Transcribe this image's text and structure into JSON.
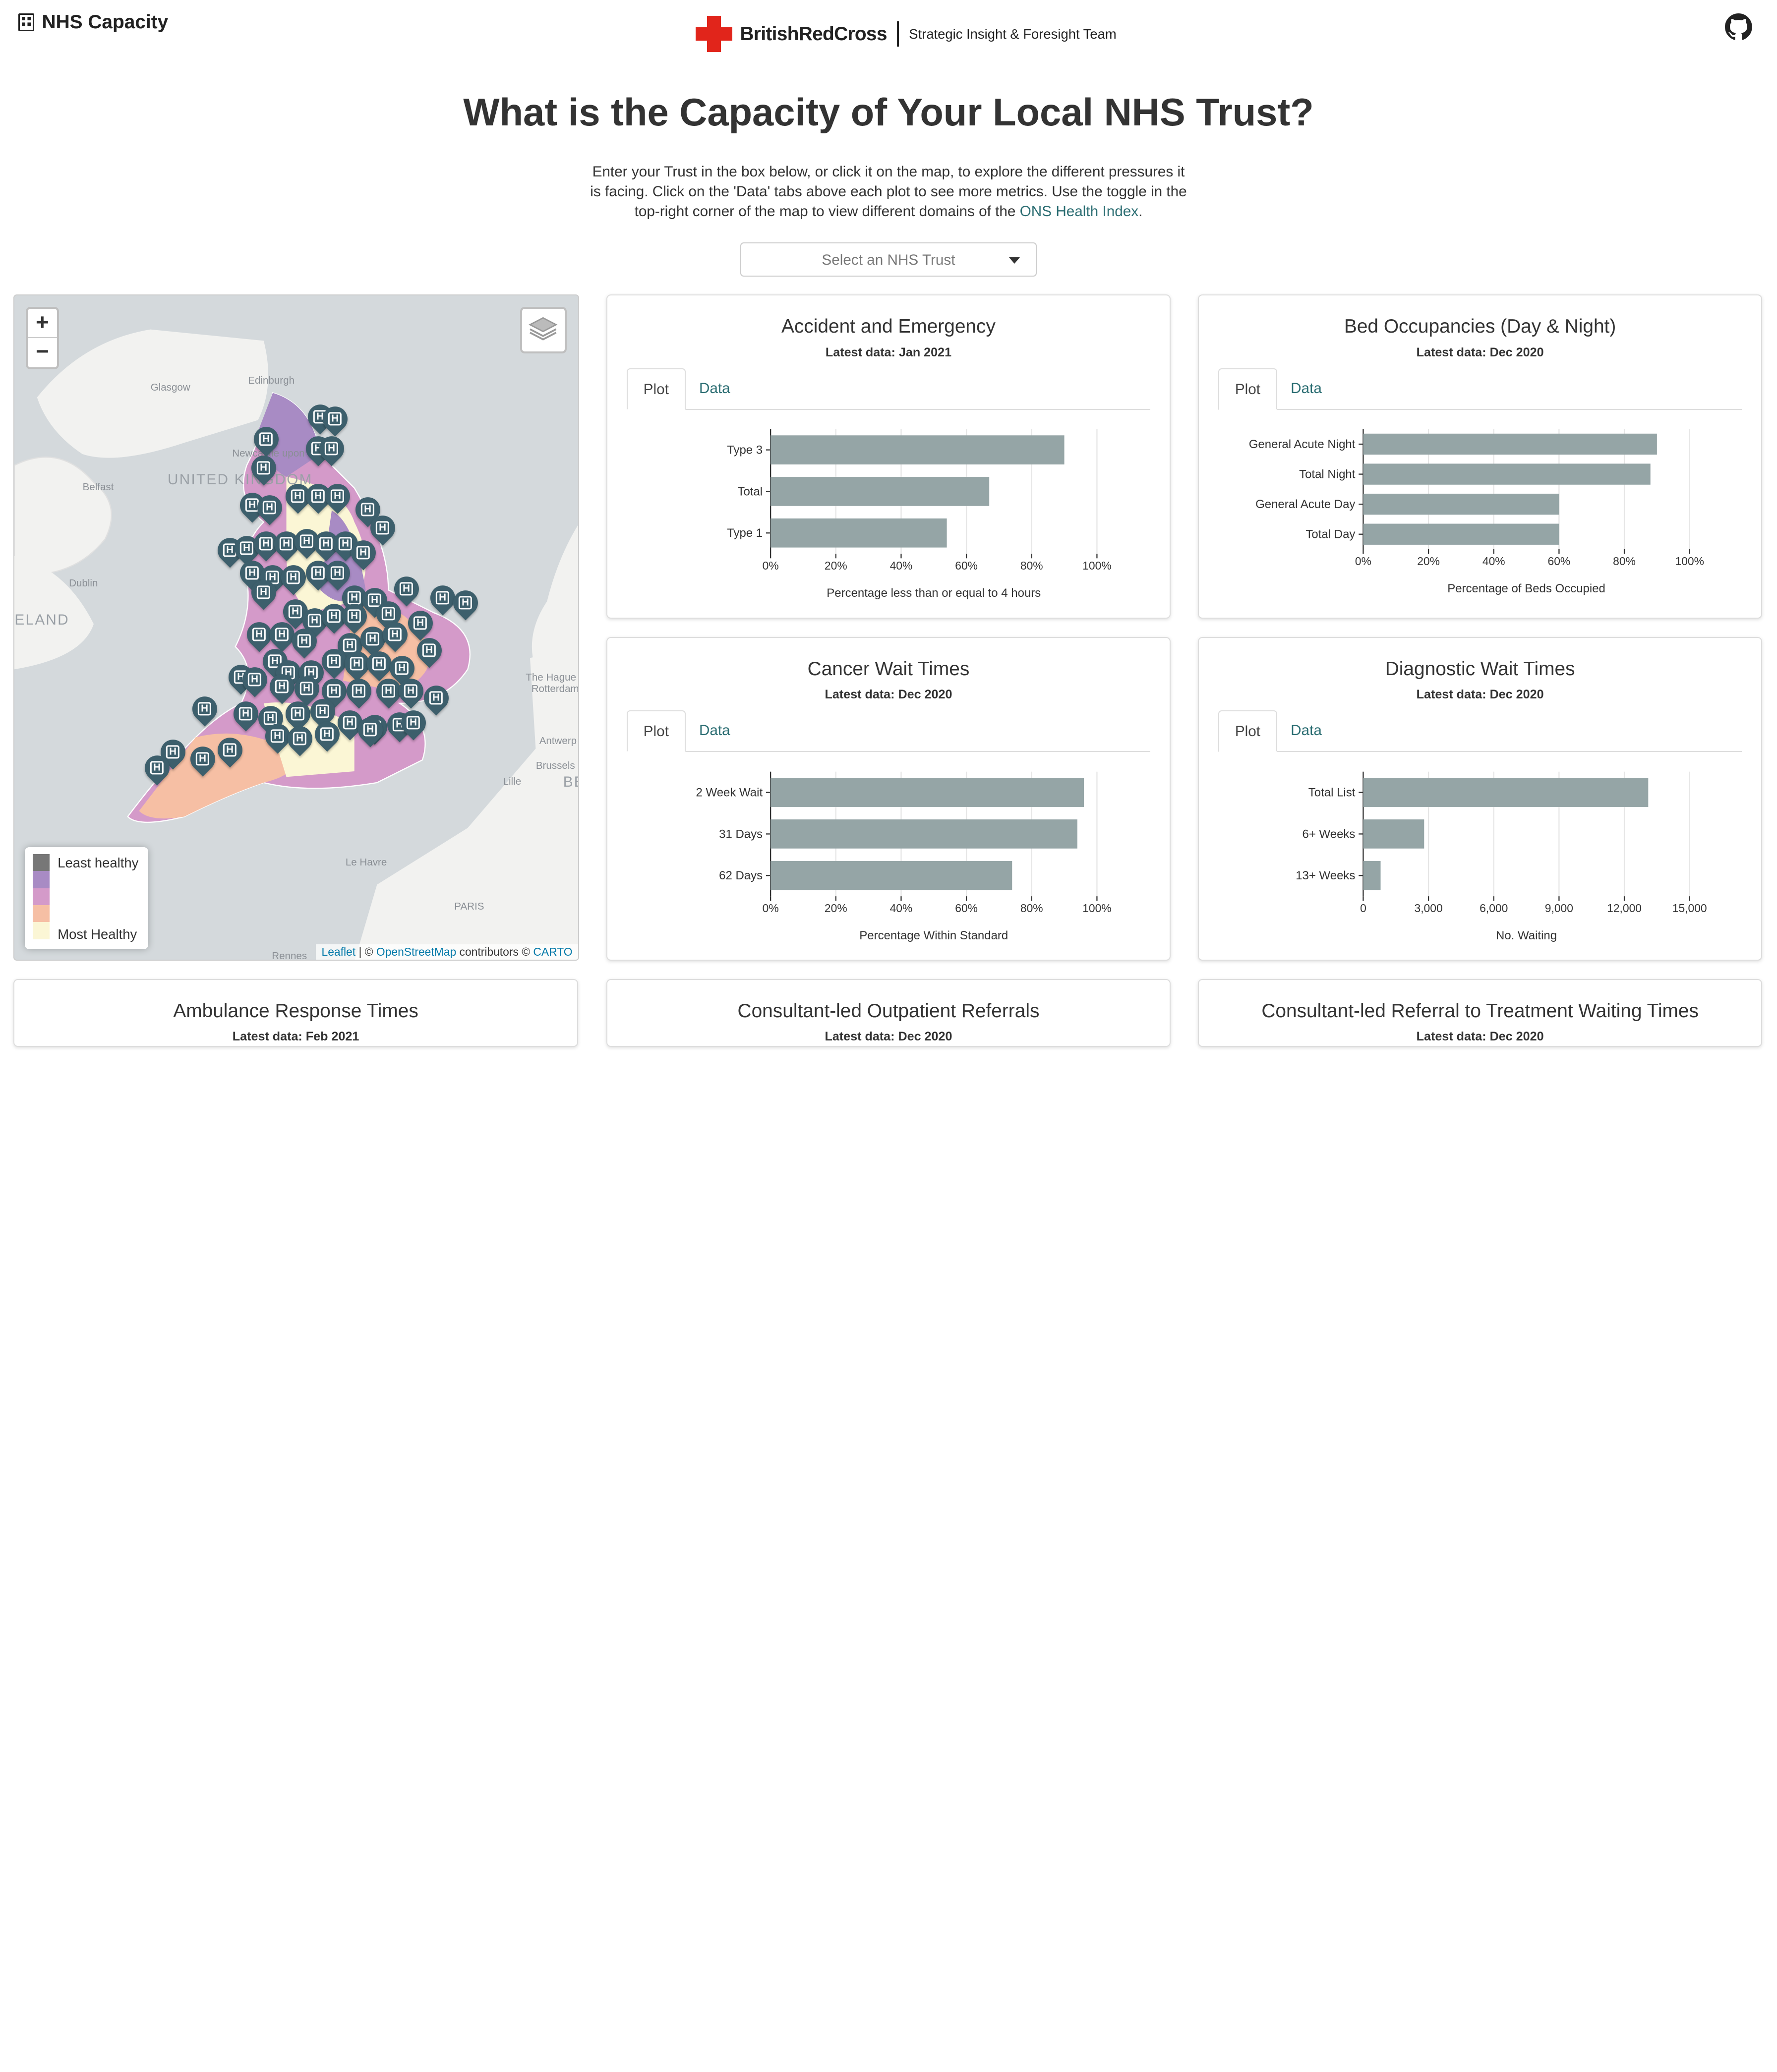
{
  "app": {
    "title": "NHS Capacity"
  },
  "header": {
    "org": "BritishRedCross",
    "team": "Strategic Insight & Foresight Team"
  },
  "page": {
    "heading": "What is the Capacity of Your Local NHS Trust?",
    "intro_text": "Enter your Trust in the box below, or click it on the map, to explore the different pressures it is facing. Click on the 'Data' tabs above each plot to see more metrics. Use the toggle in the top-right corner of the map to view different domains of the ",
    "intro_link": "ONS Health Index",
    "intro_end": "."
  },
  "select": {
    "placeholder": "Select an NHS Trust"
  },
  "map": {
    "zoom_in": "+",
    "zoom_out": "−",
    "labels": {
      "glasgow": "Glasgow",
      "edinburgh": "Edinburgh",
      "belfast": "Belfast",
      "uk": "UNITED KINGDOM",
      "dublin": "Dublin",
      "eland": "ELAND",
      "newcastle": "Newcastle upon Tyne",
      "hague": "The Hague",
      "rotterdam": "Rotterdam",
      "antwerp": "Antwerp",
      "brussels": "Brussels",
      "be": "BE",
      "lille": "Lille",
      "lehavre": "Le Havre",
      "paris": "PARIS",
      "rennes": "Rennes"
    },
    "legend": {
      "top": "Least healthy",
      "bottom": "Most Healthy",
      "colors": [
        "#777777",
        "#a88bc4",
        "#d49ac9",
        "#f6bfa4",
        "#fbf6d5"
      ]
    },
    "attribution": {
      "leaflet": "Leaflet",
      "sep": " | © ",
      "osm": "OpenStreetMap",
      "mid": " contributors © ",
      "carto": "CARTO"
    }
  },
  "tabs": {
    "plot": "Plot",
    "data": "Data"
  },
  "cards": [
    {
      "title": "Accident and Emergency",
      "subtitle": "Latest data: Jan 2021"
    },
    {
      "title": "Bed Occupancies (Day & Night)",
      "subtitle": "Latest data: Dec 2020"
    },
    {
      "title": "Cancer Wait Times",
      "subtitle": "Latest data: Dec 2020"
    },
    {
      "title": "Diagnostic Wait Times",
      "subtitle": "Latest data: Dec 2020"
    },
    {
      "title": "Ambulance Response Times",
      "subtitle": "Latest data: Feb 2021"
    },
    {
      "title": "Consultant-led Outpatient Referrals",
      "subtitle": "Latest data: Dec 2020"
    },
    {
      "title": "Consultant-led Referral to Treatment Waiting Times",
      "subtitle": "Latest data: Dec 2020"
    }
  ],
  "chart_data": [
    {
      "type": "bar",
      "orientation": "horizontal",
      "categories": [
        "Type 3",
        "Total",
        "Type 1"
      ],
      "values": [
        90,
        67,
        54
      ],
      "xlabel": "Percentage less than or equal to 4 hours",
      "xlim": [
        0,
        100
      ],
      "ticks": [
        "0%",
        "20%",
        "40%",
        "60%",
        "80%",
        "100%"
      ],
      "tickvals": [
        0,
        20,
        40,
        60,
        80,
        100
      ],
      "color": "#95a5a6",
      "grid": true
    },
    {
      "type": "bar",
      "orientation": "horizontal",
      "categories": [
        "General Acute Night",
        "Total Night",
        "General Acute Day",
        "Total Day"
      ],
      "values": [
        90,
        88,
        60,
        60
      ],
      "xlabel": "Percentage of Beds Occupied",
      "xlim": [
        0,
        100
      ],
      "ticks": [
        "0%",
        "20%",
        "40%",
        "60%",
        "80%",
        "100%"
      ],
      "tickvals": [
        0,
        20,
        40,
        60,
        80,
        100
      ],
      "color": "#95a5a6",
      "grid": true
    },
    {
      "type": "bar",
      "orientation": "horizontal",
      "categories": [
        "2 Week Wait",
        "31 Days",
        "62 Days"
      ],
      "values": [
        96,
        94,
        74
      ],
      "xlabel": "Percentage Within Standard",
      "xlim": [
        0,
        100
      ],
      "ticks": [
        "0%",
        "20%",
        "40%",
        "60%",
        "80%",
        "100%"
      ],
      "tickvals": [
        0,
        20,
        40,
        60,
        80,
        100
      ],
      "color": "#95a5a6",
      "grid": true
    },
    {
      "type": "bar",
      "orientation": "horizontal",
      "categories": [
        "Total List",
        "6+ Weeks",
        "13+ Weeks"
      ],
      "values": [
        13100,
        2800,
        800
      ],
      "xlabel": "No. Waiting",
      "xlim": [
        0,
        15000
      ],
      "ticks": [
        "0",
        "3,000",
        "6,000",
        "9,000",
        "12,000",
        "15,000"
      ],
      "tickvals": [
        0,
        3000,
        6000,
        9000,
        12000,
        15000
      ],
      "color": "#95a5a6",
      "grid": true
    }
  ]
}
